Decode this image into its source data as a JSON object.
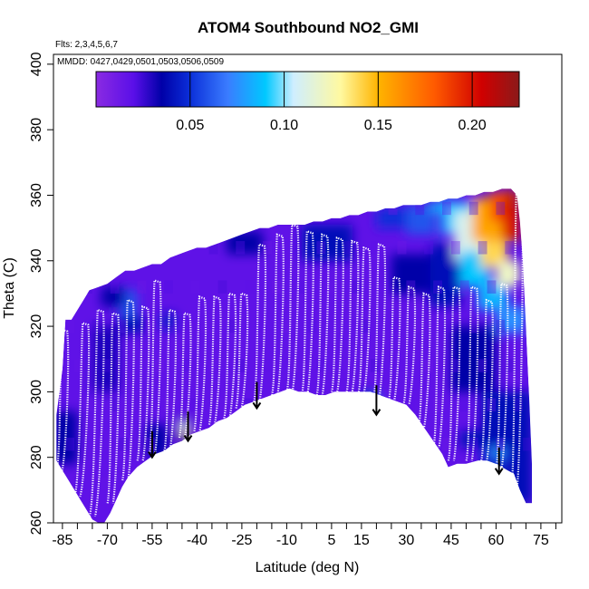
{
  "chart_data": {
    "type": "heatmap",
    "title": "ATOM4 Southbound NO2_GMI",
    "flights_note": "Flts: 2,3,4,5,6,7",
    "dates_note": "MMDD: 0427,0429,0501,0503,0506,0509",
    "xlabel": "Latitude (deg N)",
    "ylabel": "Theta (C)",
    "xlim": [
      -88,
      82
    ],
    "ylim": [
      260,
      403
    ],
    "x_ticks": [
      -85,
      -70,
      -55,
      -40,
      -25,
      -10,
      5,
      15,
      30,
      45,
      60,
      75
    ],
    "x_minor_ticks": [
      -80,
      -75,
      -65,
      -60,
      -50,
      -45,
      -35,
      -30,
      -20,
      -15,
      -5,
      0,
      10,
      20,
      25,
      35,
      40,
      50,
      55,
      65,
      70,
      80
    ],
    "y_ticks": [
      260,
      280,
      300,
      320,
      340,
      360,
      380,
      400
    ],
    "colorbar": {
      "min": 0.0,
      "max": 0.225,
      "ticks": [
        0.05,
        0.1,
        0.15,
        0.2
      ],
      "tick_labels": [
        "0.05",
        "0.10",
        "0.15",
        "0.20"
      ],
      "stops": [
        {
          "v": 0.0,
          "color": "#8a2be2"
        },
        {
          "v": 0.02,
          "color": "#5a0fe8"
        },
        {
          "v": 0.035,
          "color": "#0000a8"
        },
        {
          "v": 0.05,
          "color": "#0b2fd9"
        },
        {
          "v": 0.07,
          "color": "#3a7cff"
        },
        {
          "v": 0.09,
          "color": "#00c8ff"
        },
        {
          "v": 0.105,
          "color": "#cfeeff"
        },
        {
          "v": 0.13,
          "color": "#fff9a0"
        },
        {
          "v": 0.15,
          "color": "#ffb400"
        },
        {
          "v": 0.18,
          "color": "#ff5a00"
        },
        {
          "v": 0.205,
          "color": "#d00000"
        },
        {
          "v": 0.225,
          "color": "#8b1a1a"
        }
      ]
    },
    "curtain_top": [
      [
        -87,
        293
      ],
      [
        -85,
        307
      ],
      [
        -84,
        322
      ],
      [
        -82,
        322
      ],
      [
        -80,
        325
      ],
      [
        -78,
        328
      ],
      [
        -76,
        331
      ],
      [
        -73,
        332
      ],
      [
        -70,
        333
      ],
      [
        -67,
        335
      ],
      [
        -64,
        337
      ],
      [
        -61,
        337
      ],
      [
        -58,
        338
      ],
      [
        -55,
        339
      ],
      [
        -52,
        339
      ],
      [
        -49,
        341
      ],
      [
        -46,
        342
      ],
      [
        -43,
        343
      ],
      [
        -40,
        344
      ],
      [
        -37,
        344
      ],
      [
        -34,
        345
      ],
      [
        -31,
        346
      ],
      [
        -28,
        347
      ],
      [
        -25,
        348
      ],
      [
        -22,
        349
      ],
      [
        -19,
        350
      ],
      [
        -16,
        350
      ],
      [
        -13,
        351
      ],
      [
        -10,
        351
      ],
      [
        -7,
        351
      ],
      [
        -4,
        351
      ],
      [
        -1,
        352
      ],
      [
        2,
        352
      ],
      [
        5,
        353
      ],
      [
        8,
        353
      ],
      [
        11,
        354
      ],
      [
        14,
        354
      ],
      [
        17,
        355
      ],
      [
        20,
        355
      ],
      [
        23,
        356
      ],
      [
        26,
        356
      ],
      [
        29,
        357
      ],
      [
        32,
        357
      ],
      [
        35,
        357
      ],
      [
        38,
        358
      ],
      [
        41,
        358
      ],
      [
        44,
        359
      ],
      [
        47,
        359
      ],
      [
        50,
        360
      ],
      [
        53,
        360
      ],
      [
        56,
        361
      ],
      [
        59,
        361
      ],
      [
        62,
        362
      ],
      [
        65,
        362
      ],
      [
        67,
        360
      ],
      [
        68,
        352
      ],
      [
        69,
        340
      ],
      [
        70,
        320
      ],
      [
        71,
        300
      ],
      [
        72,
        278
      ],
      [
        72,
        266
      ]
    ],
    "curtain_bottom": [
      [
        72,
        266
      ],
      [
        70,
        266
      ],
      [
        68,
        270
      ],
      [
        66,
        275
      ],
      [
        64,
        276
      ],
      [
        62,
        277
      ],
      [
        60,
        278
      ],
      [
        57,
        279
      ],
      [
        54,
        279
      ],
      [
        50,
        278
      ],
      [
        47,
        278
      ],
      [
        44,
        277
      ],
      [
        42,
        281
      ],
      [
        39,
        285
      ],
      [
        36,
        289
      ],
      [
        33,
        293
      ],
      [
        30,
        296
      ],
      [
        27,
        297
      ],
      [
        24,
        298
      ],
      [
        21,
        299
      ],
      [
        18,
        300
      ],
      [
        15,
        300
      ],
      [
        12,
        300
      ],
      [
        9,
        300
      ],
      [
        6,
        300
      ],
      [
        3,
        299
      ],
      [
        0,
        299
      ],
      [
        -3,
        300
      ],
      [
        -6,
        300
      ],
      [
        -9,
        301
      ],
      [
        -12,
        300
      ],
      [
        -15,
        299
      ],
      [
        -18,
        298
      ],
      [
        -21,
        297
      ],
      [
        -24,
        296
      ],
      [
        -27,
        294
      ],
      [
        -30,
        292
      ],
      [
        -33,
        291
      ],
      [
        -36,
        289
      ],
      [
        -39,
        288
      ],
      [
        -42,
        287
      ],
      [
        -45,
        285
      ],
      [
        -48,
        284
      ],
      [
        -51,
        282
      ],
      [
        -54,
        281
      ],
      [
        -57,
        279
      ],
      [
        -60,
        277
      ],
      [
        -63,
        274
      ],
      [
        -65,
        271
      ],
      [
        -67,
        267
      ],
      [
        -69,
        263
      ],
      [
        -71,
        260
      ],
      [
        -73,
        260
      ],
      [
        -75,
        261
      ],
      [
        -77,
        264
      ],
      [
        -79,
        267
      ],
      [
        -81,
        270
      ],
      [
        -83,
        273
      ],
      [
        -85,
        276
      ],
      [
        -87,
        279
      ]
    ],
    "no2_patches": [
      {
        "x": [
          -66,
          -60
        ],
        "y": [
          323,
          331
        ],
        "value": 0.06
      },
      {
        "x": [
          -66,
          -58
        ],
        "y": [
          318,
          323
        ],
        "value": 0.04
      },
      {
        "x": [
          -72,
          -64
        ],
        "y": [
          326,
          332
        ],
        "value": 0.035
      },
      {
        "x": [
          -52,
          -47
        ],
        "y": [
          319,
          324
        ],
        "value": 0.045
      },
      {
        "x": [
          -47,
          -42
        ],
        "y": [
          282,
          292
        ],
        "value": 0.035
      },
      {
        "x": [
          -46,
          -43
        ],
        "y": [
          288,
          291
        ],
        "value": 0.11
      },
      {
        "x": [
          -45,
          -43
        ],
        "y": [
          286,
          288
        ],
        "value": 0.14
      },
      {
        "x": [
          -57,
          -50
        ],
        "y": [
          280,
          290
        ],
        "value": 0.035
      },
      {
        "x": [
          -88,
          -80
        ],
        "y": [
          278,
          294
        ],
        "value": 0.035
      },
      {
        "x": [
          -75,
          -66
        ],
        "y": [
          300,
          320
        ],
        "value": 0.03
      },
      {
        "x": [
          -5,
          12
        ],
        "y": [
          340,
          351
        ],
        "value": 0.04
      },
      {
        "x": [
          -30,
          -18
        ],
        "y": [
          342,
          349
        ],
        "value": 0.035
      },
      {
        "x": [
          15,
          20
        ],
        "y": [
          294,
          300
        ],
        "value": 0.04
      },
      {
        "x": [
          18,
          21
        ],
        "y": [
          296,
          299
        ],
        "value": 0.08
      },
      {
        "x": [
          25,
          40
        ],
        "y": [
          330,
          342
        ],
        "value": 0.035
      },
      {
        "x": [
          20,
          35
        ],
        "y": [
          350,
          356
        ],
        "value": 0.05
      },
      {
        "x": [
          30,
          40
        ],
        "y": [
          348,
          357
        ],
        "value": 0.06
      },
      {
        "x": [
          38,
          48
        ],
        "y": [
          326,
          345
        ],
        "value": 0.04
      },
      {
        "x": [
          45,
          60
        ],
        "y": [
          300,
          320
        ],
        "value": 0.035
      },
      {
        "x": [
          55,
          72
        ],
        "y": [
          266,
          300
        ],
        "value": 0.04
      },
      {
        "x": [
          55,
          65
        ],
        "y": [
          276,
          283
        ],
        "value": 0.045
      },
      {
        "x": [
          58,
          63
        ],
        "y": [
          280,
          283
        ],
        "value": 0.075
      },
      {
        "x": [
          48,
          62
        ],
        "y": [
          283,
          288
        ],
        "value": 0.04
      },
      {
        "x": [
          38,
          46
        ],
        "y": [
          355,
          358
        ],
        "value": 0.085
      },
      {
        "x": [
          42,
          52
        ],
        "y": [
          348,
          358
        ],
        "value": 0.09
      },
      {
        "x": [
          46,
          56
        ],
        "y": [
          340,
          355
        ],
        "value": 0.11
      },
      {
        "x": [
          48,
          58
        ],
        "y": [
          332,
          343
        ],
        "value": 0.09
      },
      {
        "x": [
          54,
          64
        ],
        "y": [
          325,
          334
        ],
        "value": 0.085
      },
      {
        "x": [
          60,
          70
        ],
        "y": [
          318,
          326
        ],
        "value": 0.075
      },
      {
        "x": [
          52,
          66
        ],
        "y": [
          346,
          359
        ],
        "value": 0.155
      },
      {
        "x": [
          55,
          64
        ],
        "y": [
          338,
          346
        ],
        "value": 0.14
      },
      {
        "x": [
          60,
          68
        ],
        "y": [
          332,
          340
        ],
        "value": 0.12
      },
      {
        "x": [
          58,
          68
        ],
        "y": [
          352,
          361
        ],
        "value": 0.185
      },
      {
        "x": [
          62,
          68
        ],
        "y": [
          346,
          358
        ],
        "value": 0.2
      },
      {
        "x": [
          64,
          67
        ],
        "y": [
          356,
          362
        ],
        "value": 0.215
      }
    ],
    "flight_track_profiles": [
      {
        "x_bottom": -86,
        "x_top": -84,
        "theta_bottom": 276,
        "theta_top": 319
      },
      {
        "x_bottom": -80,
        "x_top": -77,
        "theta_bottom": 268,
        "theta_top": 321
      },
      {
        "x_bottom": -75,
        "x_top": -72,
        "theta_bottom": 262,
        "theta_top": 325
      },
      {
        "x_bottom": -69,
        "x_top": -67,
        "theta_bottom": 266,
        "theta_top": 324
      },
      {
        "x_bottom": -64,
        "x_top": -62,
        "theta_bottom": 273,
        "theta_top": 328
      },
      {
        "x_bottom": -59,
        "x_top": -57,
        "theta_bottom": 279,
        "theta_top": 326
      },
      {
        "x_bottom": -55,
        "x_top": -53,
        "theta_bottom": 281,
        "theta_top": 334
      },
      {
        "x_bottom": -50,
        "x_top": -48,
        "theta_bottom": 282,
        "theta_top": 325
      },
      {
        "x_bottom": -45,
        "x_top": -43,
        "theta_bottom": 286,
        "theta_top": 324
      },
      {
        "x_bottom": -40,
        "x_top": -38,
        "theta_bottom": 288,
        "theta_top": 329
      },
      {
        "x_bottom": -35,
        "x_top": -33,
        "theta_bottom": 290,
        "theta_top": 329
      },
      {
        "x_bottom": -30,
        "x_top": -28,
        "theta_bottom": 292,
        "theta_top": 330
      },
      {
        "x_bottom": -26,
        "x_top": -24,
        "theta_bottom": 295,
        "theta_top": 330
      },
      {
        "x_bottom": -20,
        "x_top": -18,
        "theta_bottom": 297,
        "theta_top": 345
      },
      {
        "x_bottom": -14,
        "x_top": -12,
        "theta_bottom": 299,
        "theta_top": 348
      },
      {
        "x_bottom": -9,
        "x_top": -7,
        "theta_bottom": 300,
        "theta_top": 351
      },
      {
        "x_bottom": -4,
        "x_top": -2,
        "theta_bottom": 299,
        "theta_top": 349
      },
      {
        "x_bottom": 1,
        "x_top": 3,
        "theta_bottom": 299,
        "theta_top": 348
      },
      {
        "x_bottom": 6,
        "x_top": 8,
        "theta_bottom": 300,
        "theta_top": 347
      },
      {
        "x_bottom": 11,
        "x_top": 13,
        "theta_bottom": 300,
        "theta_top": 346
      },
      {
        "x_bottom": 15,
        "x_top": 17,
        "theta_bottom": 300,
        "theta_top": 344
      },
      {
        "x_bottom": 20,
        "x_top": 22,
        "theta_bottom": 298,
        "theta_top": 345
      },
      {
        "x_bottom": 25,
        "x_top": 27,
        "theta_bottom": 297,
        "theta_top": 335
      },
      {
        "x_bottom": 30,
        "x_top": 32,
        "theta_bottom": 296,
        "theta_top": 332
      },
      {
        "x_bottom": 35,
        "x_top": 37,
        "theta_bottom": 289,
        "theta_top": 330
      },
      {
        "x_bottom": 40,
        "x_top": 42,
        "theta_bottom": 283,
        "theta_top": 332
      },
      {
        "x_bottom": 45,
        "x_top": 47,
        "theta_bottom": 279,
        "theta_top": 332
      },
      {
        "x_bottom": 51,
        "x_top": 53,
        "theta_bottom": 279,
        "theta_top": 332
      },
      {
        "x_bottom": 56,
        "x_top": 58,
        "theta_bottom": 279,
        "theta_top": 328
      },
      {
        "x_bottom": 61,
        "x_top": 63,
        "theta_bottom": 277,
        "theta_top": 333
      },
      {
        "x_bottom": 66,
        "x_top": 68,
        "theta_bottom": 270,
        "theta_top": 360
      }
    ],
    "arrows": [
      {
        "x": -55,
        "y_top": 288,
        "y_tip": 280
      },
      {
        "x": -43,
        "y_top": 294,
        "y_tip": 285
      },
      {
        "x": -20,
        "y_top": 303,
        "y_tip": 295
      },
      {
        "x": 20,
        "y_top": 302,
        "y_tip": 293
      },
      {
        "x": 61,
        "y_top": 283,
        "y_tip": 275
      }
    ],
    "grid": false,
    "legend": "none"
  }
}
